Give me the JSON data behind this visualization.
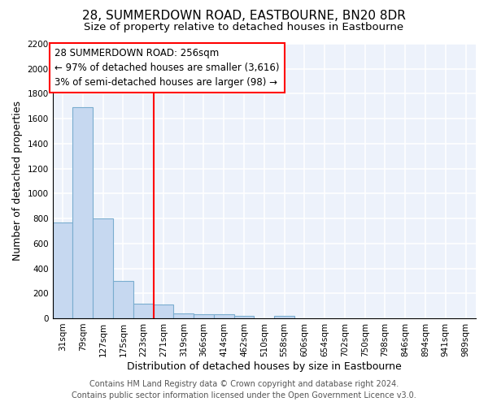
{
  "title": "28, SUMMERDOWN ROAD, EASTBOURNE, BN20 8DR",
  "subtitle": "Size of property relative to detached houses in Eastbourne",
  "xlabel": "Distribution of detached houses by size in Eastbourne",
  "ylabel": "Number of detached properties",
  "categories": [
    "31sqm",
    "79sqm",
    "127sqm",
    "175sqm",
    "223sqm",
    "271sqm",
    "319sqm",
    "366sqm",
    "414sqm",
    "462sqm",
    "510sqm",
    "558sqm",
    "606sqm",
    "654sqm",
    "702sqm",
    "750sqm",
    "798sqm",
    "846sqm",
    "894sqm",
    "941sqm",
    "989sqm"
  ],
  "values": [
    770,
    1690,
    800,
    300,
    115,
    110,
    40,
    30,
    30,
    20,
    0,
    20,
    0,
    0,
    0,
    0,
    0,
    0,
    0,
    0,
    0
  ],
  "bar_color": "#c6d8f0",
  "bar_edge_color": "#7aadcf",
  "vline_x_index": 5,
  "vline_color": "red",
  "annotation_title": "28 SUMMERDOWN ROAD: 256sqm",
  "annotation_line1": "← 97% of detached houses are smaller (3,616)",
  "annotation_line2": "3% of semi-detached houses are larger (98) →",
  "ylim": [
    0,
    2200
  ],
  "yticks": [
    0,
    200,
    400,
    600,
    800,
    1000,
    1200,
    1400,
    1600,
    1800,
    2000,
    2200
  ],
  "footer_line1": "Contains HM Land Registry data © Crown copyright and database right 2024.",
  "footer_line2": "Contains public sector information licensed under the Open Government Licence v3.0.",
  "background_color": "#edf2fb",
  "grid_color": "#ffffff",
  "title_fontsize": 11,
  "subtitle_fontsize": 9.5,
  "axis_label_fontsize": 9,
  "tick_fontsize": 7.5,
  "annotation_fontsize": 8.5,
  "footer_fontsize": 7
}
